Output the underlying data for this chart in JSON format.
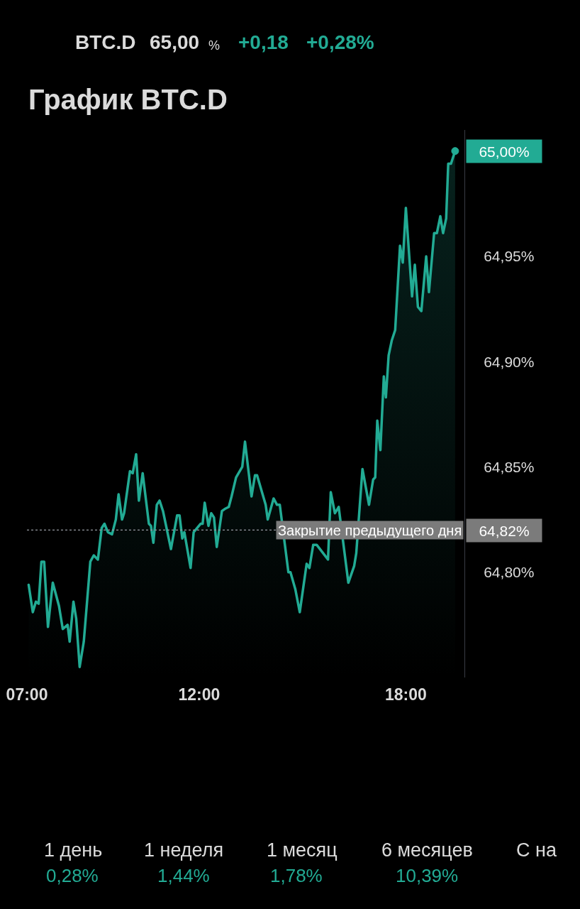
{
  "chart_data": {
    "type": "area",
    "title": "График BTC.D",
    "color": "#22ab94",
    "x": [
      7.05,
      7.17,
      7.26,
      7.34,
      7.42,
      7.5,
      7.61,
      7.75,
      7.93,
      8.04,
      8.18,
      8.24,
      8.35,
      8.43,
      8.53,
      8.65,
      8.84,
      8.94,
      9.06,
      9.17,
      9.25,
      9.35,
      9.47,
      9.58,
      9.66,
      9.76,
      9.82,
      9.99,
      10.07,
      10.17,
      10.25,
      10.36,
      10.54,
      10.6,
      10.67,
      10.77,
      10.85,
      10.95,
      11.18,
      11.36,
      11.43,
      11.51,
      11.57,
      11.75,
      11.84,
      12.04,
      12.1,
      12.16,
      12.27,
      12.35,
      12.43,
      12.51,
      12.66,
      12.74,
      12.86,
      12.94,
      13.07,
      13.25,
      13.33,
      13.52,
      13.62,
      13.68,
      13.93,
      13.99,
      14.16,
      14.26,
      14.34,
      14.59,
      14.65,
      14.79,
      14.92,
      15.12,
      15.2,
      15.31,
      15.41,
      15.74,
      15.82,
      15.94,
      16.05,
      16.33,
      16.5,
      16.56,
      16.74,
      16.93,
      17.05,
      17.11,
      17.17,
      17.26,
      17.36,
      17.42,
      17.5,
      17.59,
      17.69,
      17.83,
      17.91,
      18.0,
      18.18,
      18.26,
      18.35,
      18.45,
      18.59,
      18.67,
      18.82,
      18.9,
      19.0,
      19.08,
      19.17,
      19.23,
      19.31,
      19.37,
      19.43
    ],
    "values": [
      64.794,
      64.781,
      64.786,
      64.785,
      64.805,
      64.805,
      64.774,
      64.795,
      64.784,
      64.773,
      64.775,
      64.767,
      64.786,
      64.778,
      64.755,
      64.767,
      64.805,
      64.808,
      64.806,
      64.821,
      64.823,
      64.819,
      64.818,
      64.825,
      64.837,
      64.825,
      64.828,
      64.848,
      64.847,
      64.856,
      64.834,
      64.847,
      64.823,
      64.822,
      64.814,
      64.832,
      64.834,
      64.829,
      64.811,
      64.827,
      64.827,
      64.816,
      64.819,
      64.802,
      64.819,
      64.823,
      64.823,
      64.833,
      64.822,
      64.828,
      64.826,
      64.812,
      64.829,
      64.83,
      64.831,
      64.836,
      64.845,
      64.85,
      64.862,
      64.836,
      64.846,
      64.846,
      64.832,
      64.825,
      64.835,
      64.832,
      64.832,
      64.8,
      64.8,
      64.792,
      64.781,
      64.804,
      64.802,
      64.813,
      64.813,
      64.806,
      64.838,
      64.828,
      64.831,
      64.795,
      64.803,
      64.809,
      64.849,
      64.832,
      64.844,
      64.845,
      64.872,
      64.858,
      64.893,
      64.883,
      64.903,
      64.91,
      64.915,
      64.955,
      64.947,
      64.973,
      64.931,
      64.946,
      64.926,
      64.924,
      64.95,
      64.933,
      64.961,
      64.961,
      64.969,
      64.961,
      64.968,
      64.994,
      64.994,
      64.997,
      65.0
    ],
    "xlim": [
      7,
      19.7
    ],
    "xticks": [
      {
        "value": 7,
        "label": "07:00"
      },
      {
        "value": 12,
        "label": "12:00"
      },
      {
        "value": 18,
        "label": "18:00"
      }
    ],
    "ylim": [
      64.75,
      65.01
    ],
    "yticks": [
      {
        "value": 64.8,
        "label": "64,80%"
      },
      {
        "value": 64.85,
        "label": "64,85%"
      },
      {
        "value": 64.9,
        "label": "64,90%"
      },
      {
        "value": 64.95,
        "label": "64,95%"
      }
    ],
    "ref_lines": [
      {
        "axis": "y",
        "value": 64.82,
        "label": "Закрытие предыдущего дня",
        "color": "#9598a1",
        "line_style": "dotted"
      }
    ],
    "annotations": [
      "BTC.D",
      "65,00",
      "%",
      "+0,18",
      "+0,28%",
      "64,82%",
      {
        "text": "65,00%",
        "x": 19.43,
        "y": 65.0
      },
      "1 день",
      "0,28%",
      "1 неделя",
      "1,44%",
      "1 месяц",
      "1,78%",
      "6 месяцев",
      "10,39%",
      "С на"
    ],
    "grid": false,
    "legend": false
  }
}
